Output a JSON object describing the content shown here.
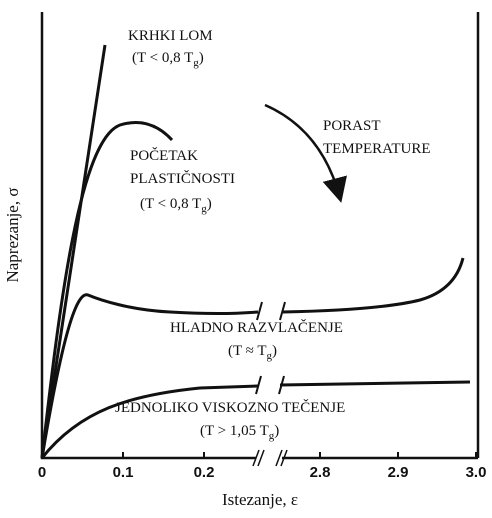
{
  "axes": {
    "x_label": "Istezanje, ε",
    "y_label": "Naprezanje, σ",
    "x_ticks": [
      "0",
      "0.1",
      "0.2",
      "2.8",
      "2.9",
      "3.0"
    ]
  },
  "annotations": [
    {
      "lines": [
        "KRHKI LOM"
      ],
      "condition": {
        "text": "(T < 0,8 T",
        "sub": "g",
        "end": ")"
      }
    },
    {
      "lines": [
        "POČETAK",
        "PLASTIČNOSTI"
      ],
      "condition": {
        "text": "(T < 0,8 T",
        "sub": "g",
        "end": ")"
      }
    },
    {
      "lines": [
        "PORAST",
        "TEMPERATURE"
      ]
    },
    {
      "lines": [
        "HLADNO RAZVLAČENJE"
      ],
      "condition": {
        "text": "(T ≈ T",
        "sub": "g",
        "end": ")"
      }
    },
    {
      "lines": [
        "JEDNOLIKO VISKOZNO TEČENJE"
      ],
      "condition": {
        "text": "(T > 1,05 T",
        "sub": "g",
        "end": ")"
      }
    }
  ]
}
